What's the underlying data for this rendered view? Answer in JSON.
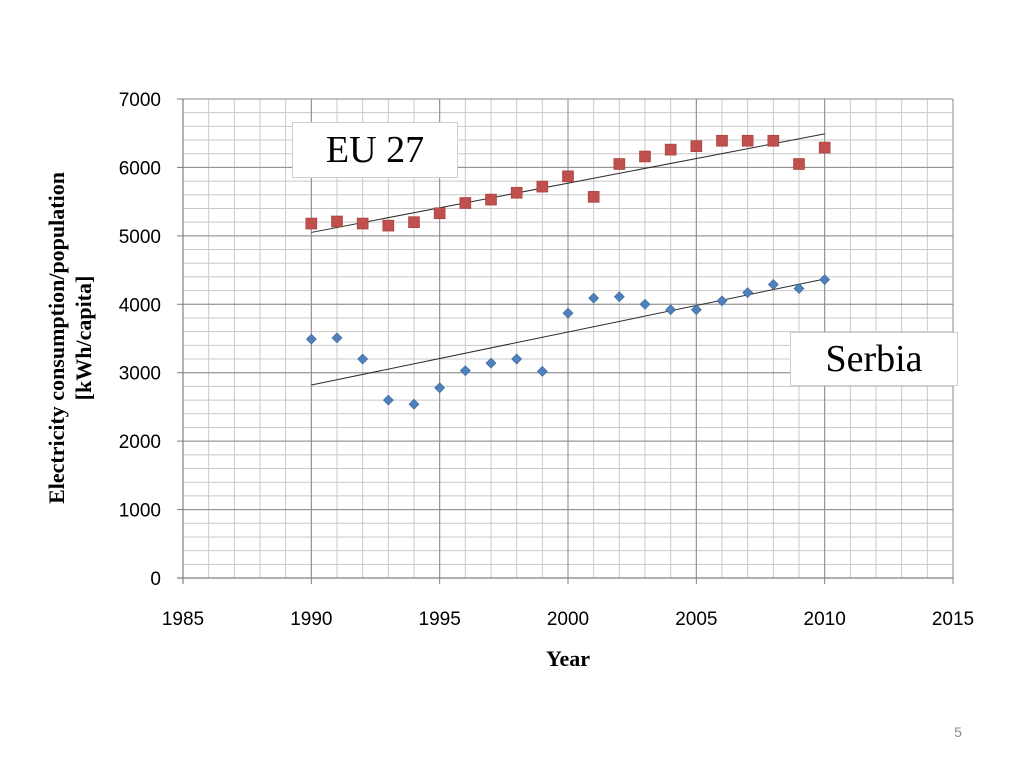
{
  "chart_data": {
    "type": "scatter",
    "xlabel": "Year",
    "ylabel": "Electricity consumption/population [kWh/capita]",
    "ylabel_lines": [
      "Electricity consumption/population",
      "[kWh/capita]"
    ],
    "xlim": [
      1985,
      2015
    ],
    "ylim": [
      0,
      7000
    ],
    "x_ticks": [
      "1985",
      "1990",
      "1995",
      "2000",
      "2005",
      "2010",
      "2015"
    ],
    "y_ticks": [
      "0",
      "1000",
      "2000",
      "3000",
      "4000",
      "5000",
      "6000",
      "7000"
    ],
    "grid": true,
    "series": [
      {
        "name": "EU 27",
        "marker": "square",
        "color": "#c0504d",
        "x": [
          1990,
          1991,
          1992,
          1993,
          1994,
          1995,
          1996,
          1997,
          1998,
          1999,
          2000,
          2001,
          2002,
          2003,
          2004,
          2005,
          2006,
          2007,
          2008,
          2009,
          2010
        ],
        "y": [
          5180,
          5210,
          5180,
          5150,
          5200,
          5330,
          5480,
          5530,
          5630,
          5720,
          5870,
          5570,
          6050,
          6160,
          6260,
          6310,
          6390,
          6390,
          6390,
          6050,
          6290
        ],
        "trendline": {
          "x": [
            1990,
            2010
          ],
          "y": [
            5050,
            6490
          ]
        }
      },
      {
        "name": "Serbia",
        "marker": "diamond",
        "color": "#4f81bd",
        "x": [
          1990,
          1991,
          1992,
          1993,
          1994,
          1995,
          1996,
          1997,
          1998,
          1999,
          2000,
          2001,
          2002,
          2003,
          2004,
          2005,
          2006,
          2007,
          2008,
          2009,
          2010
        ],
        "y": [
          3490,
          3510,
          3200,
          2600,
          2540,
          2780,
          3030,
          3140,
          3200,
          3020,
          3870,
          4090,
          4110,
          4000,
          3920,
          3920,
          4050,
          4170,
          4290,
          4230,
          4360
        ],
        "trendline": {
          "x": [
            1990,
            2010
          ],
          "y": [
            2820,
            4370
          ]
        }
      }
    ]
  },
  "annotations": {
    "eu_label": "EU 27",
    "serbia_label": "Serbia"
  },
  "page_number": "5"
}
